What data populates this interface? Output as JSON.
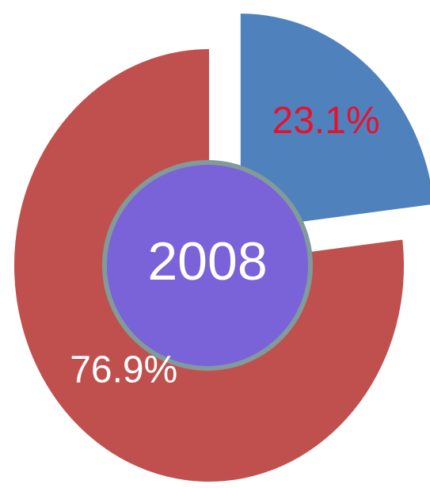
{
  "chart_data": {
    "type": "pie",
    "center_label": "2008",
    "values": [
      23.1,
      76.9
    ],
    "value_labels": [
      "23.1%",
      "76.9%"
    ],
    "colors": [
      "#4f81bd",
      "#c0504d"
    ],
    "label_colors": [
      "#e8112d",
      "#ffffff"
    ],
    "exploded": [
      true,
      false
    ],
    "center_color": "#7a62d8",
    "center_border": "#819a9a"
  }
}
